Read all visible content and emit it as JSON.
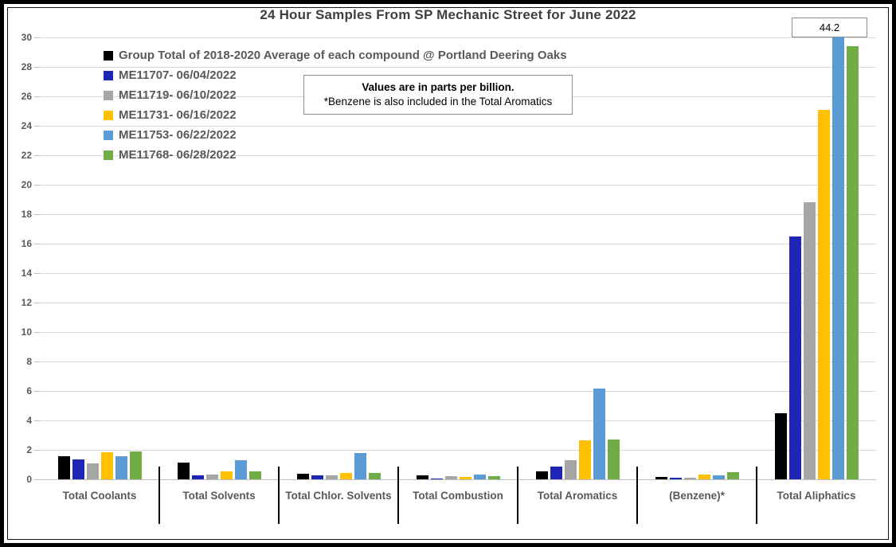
{
  "title": "24 Hour Samples From SP Mechanic Street for June 2022",
  "note": {
    "line1": "Values are in parts per billion.",
    "line2": "*Benzene is also included in the Total Aromatics"
  },
  "callout": {
    "label": "44.2"
  },
  "chart_data": {
    "type": "bar",
    "title": "24 Hour Samples From SP Mechanic Street for June 2022",
    "ylabel": "parts per billion",
    "xlabel": "",
    "ylim": [
      0,
      30
    ],
    "ytick_step": 2,
    "grid": true,
    "legend_position": "inside-top-left",
    "categories": [
      "Total Coolants",
      "Total Solvents",
      "Total Chlor. Solvents",
      "Total Combustion",
      "Total Aromatics",
      "(Benzene)*",
      "Total Aliphatics"
    ],
    "series": [
      {
        "name": "Group Total of 2018-2020 Average of each compound @ Portland Deering Oaks",
        "color": "#000000",
        "values": [
          1.55,
          1.15,
          0.38,
          0.27,
          0.55,
          0.18,
          4.5
        ]
      },
      {
        "name": "ME11707- 06/04/2022",
        "color": "#1F26B5",
        "values": [
          1.35,
          0.25,
          0.27,
          0.08,
          0.85,
          0.12,
          16.5
        ]
      },
      {
        "name": "ME11719- 06/10/2022",
        "color": "#A6A6A6",
        "values": [
          1.1,
          0.35,
          0.3,
          0.2,
          1.3,
          0.1,
          18.8
        ]
      },
      {
        "name": "ME11731- 06/16/2022",
        "color": "#FFC000",
        "values": [
          1.85,
          0.55,
          0.45,
          0.18,
          2.65,
          0.35,
          25.1
        ]
      },
      {
        "name": "ME11753- 06/22/2022",
        "color": "#5B9BD5",
        "values": [
          1.55,
          1.3,
          1.8,
          0.35,
          6.15,
          0.25,
          44.2
        ]
      },
      {
        "name": "ME11768- 06/28/2022",
        "color": "#70AD47",
        "values": [
          1.9,
          0.55,
          0.45,
          0.22,
          2.7,
          0.5,
          29.4
        ]
      }
    ],
    "annotations": [
      {
        "text": "44.2",
        "series": "ME11753- 06/22/2022",
        "category": "Total Aliphatics",
        "note": "bar exceeds axis max 30 and is clipped; value shown in boxed label"
      }
    ]
  },
  "colors": {
    "grid": "#D9D9D9",
    "axis_text": "#595959",
    "title_text": "#3F3F3F",
    "note_border": "#8C8C8C",
    "frame": "#000000"
  }
}
